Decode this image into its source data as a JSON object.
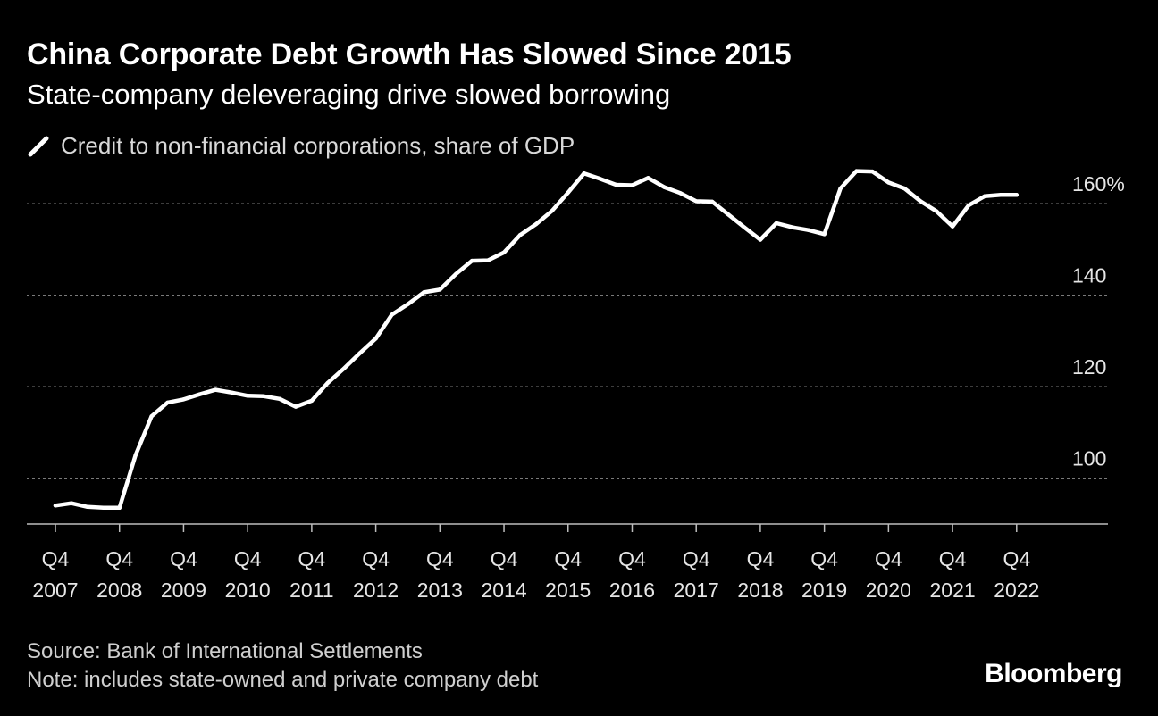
{
  "header": {
    "title": "China Corporate Debt Growth Has Slowed Since 2015",
    "subtitle": "State-company deleveraging drive slowed borrowing"
  },
  "legend": {
    "label": "Credit to non-financial corporations, share of GDP",
    "icon": "line-swatch-icon",
    "color": "#ffffff"
  },
  "footer": {
    "source": "Source: Bank of International Settlements",
    "note": "Note: includes state-owned and private company debt",
    "logo": "Bloomberg"
  },
  "colors": {
    "background": "#000000",
    "line": "#ffffff",
    "grid": "#7a7a7a",
    "tick_text": "#e6e6e6"
  },
  "chart_data": {
    "type": "line",
    "title": "China Corporate Debt Growth Has Slowed Since 2015",
    "subtitle": "State-company deleveraging drive slowed borrowing",
    "xlabel": "",
    "ylabel": "",
    "ylim": [
      86,
      164
    ],
    "grid": true,
    "legend_position": "top-left",
    "y_ticks": [
      {
        "value": 160,
        "label": "160%"
      },
      {
        "value": 140,
        "label": "140"
      },
      {
        "value": 120,
        "label": "120"
      },
      {
        "value": 100,
        "label": "100"
      }
    ],
    "x_ticks": [
      {
        "index": 0,
        "quarter": "Q4",
        "year": "2007"
      },
      {
        "index": 4,
        "quarter": "Q4",
        "year": "2008"
      },
      {
        "index": 8,
        "quarter": "Q4",
        "year": "2009"
      },
      {
        "index": 12,
        "quarter": "Q4",
        "year": "2010"
      },
      {
        "index": 16,
        "quarter": "Q4",
        "year": "2011"
      },
      {
        "index": 20,
        "quarter": "Q4",
        "year": "2012"
      },
      {
        "index": 24,
        "quarter": "Q4",
        "year": "2013"
      },
      {
        "index": 28,
        "quarter": "Q4",
        "year": "2014"
      },
      {
        "index": 32,
        "quarter": "Q4",
        "year": "2015"
      },
      {
        "index": 36,
        "quarter": "Q4",
        "year": "2016"
      },
      {
        "index": 40,
        "quarter": "Q4",
        "year": "2017"
      },
      {
        "index": 44,
        "quarter": "Q4",
        "year": "2018"
      },
      {
        "index": 48,
        "quarter": "Q4",
        "year": "2019"
      },
      {
        "index": 52,
        "quarter": "Q4",
        "year": "2020"
      },
      {
        "index": 56,
        "quarter": "Q4",
        "year": "2021"
      },
      {
        "index": 60,
        "quarter": "Q4",
        "year": "2022"
      }
    ],
    "series": [
      {
        "name": "Credit to non-financial corporations, share of GDP",
        "x": [
          "Q4 2007",
          "Q1 2008",
          "Q2 2008",
          "Q3 2008",
          "Q4 2008",
          "Q1 2009",
          "Q2 2009",
          "Q3 2009",
          "Q4 2009",
          "Q1 2010",
          "Q2 2010",
          "Q3 2010",
          "Q4 2010",
          "Q1 2011",
          "Q2 2011",
          "Q3 2011",
          "Q4 2011",
          "Q1 2012",
          "Q2 2012",
          "Q3 2012",
          "Q4 2012",
          "Q1 2013",
          "Q2 2013",
          "Q3 2013",
          "Q4 2013",
          "Q1 2014",
          "Q2 2014",
          "Q3 2014",
          "Q4 2014",
          "Q1 2015",
          "Q2 2015",
          "Q3 2015",
          "Q4 2015",
          "Q1 2016",
          "Q2 2016",
          "Q3 2016",
          "Q4 2016",
          "Q1 2017",
          "Q2 2017",
          "Q3 2017",
          "Q4 2017",
          "Q1 2018",
          "Q2 2018",
          "Q3 2018",
          "Q4 2018",
          "Q1 2019",
          "Q2 2019",
          "Q3 2019",
          "Q4 2019",
          "Q1 2020",
          "Q2 2020",
          "Q3 2020",
          "Q4 2020",
          "Q1 2021",
          "Q2 2021",
          "Q3 2021",
          "Q4 2021",
          "Q1 2022",
          "Q2 2022",
          "Q3 2022",
          "Q4 2022"
        ],
        "values": [
          94.0,
          94.5,
          93.7,
          93.5,
          93.5,
          105.0,
          113.5,
          116.5,
          117.2,
          118.3,
          119.3,
          118.7,
          118.0,
          117.9,
          117.3,
          115.6,
          116.9,
          120.8,
          123.9,
          127.3,
          130.5,
          135.7,
          138.0,
          140.6,
          141.2,
          144.6,
          147.5,
          147.6,
          149.3,
          153.1,
          155.5,
          158.4,
          162.4,
          166.6,
          165.4,
          164.1,
          164.0,
          165.6,
          163.6,
          162.3,
          160.5,
          160.4,
          157.6,
          154.8,
          152.1,
          155.7,
          154.8,
          154.2,
          153.3,
          163.3,
          167.1,
          167.0,
          164.6,
          163.3,
          160.5,
          158.3,
          155.0,
          159.6,
          161.6,
          161.9,
          161.9
        ]
      }
    ]
  }
}
